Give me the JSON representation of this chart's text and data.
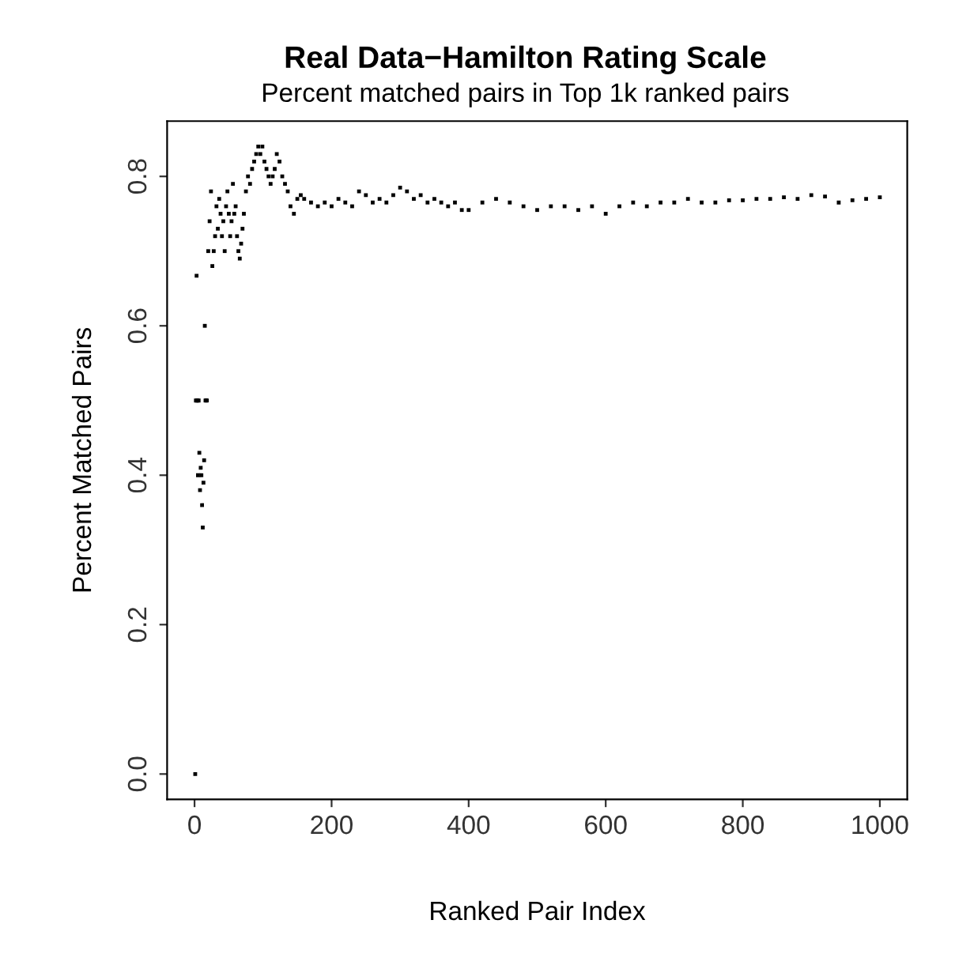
{
  "chart_data": {
    "type": "scatter",
    "title": "Real Data−Hamilton Rating Scale",
    "subtitle": "Percent matched pairs in Top 1k ranked pairs",
    "xlabel": "Ranked Pair Index",
    "ylabel": "Percent Matched Pairs",
    "xlim": [
      -40,
      1040
    ],
    "ylim": [
      -0.034,
      0.874
    ],
    "xticks": [
      0,
      200,
      400,
      600,
      800,
      1000
    ],
    "yticks": [
      {
        "value": 0,
        "label": "0.0"
      },
      0.2,
      0.4,
      0.6,
      0.8
    ],
    "grid": false,
    "legend": false,
    "marker": "square",
    "series": [
      {
        "color": "#000000",
        "x": [
          1,
          2,
          3,
          4,
          5,
          6,
          7,
          8,
          9,
          10,
          11,
          12,
          13,
          14,
          15,
          16,
          17,
          18,
          20,
          22,
          24,
          26,
          28,
          30,
          32,
          34,
          36,
          38,
          40,
          42,
          44,
          46,
          48,
          50,
          52,
          54,
          56,
          58,
          60,
          62,
          64,
          66,
          68,
          70,
          72,
          75,
          78,
          81,
          84,
          87,
          90,
          93,
          96,
          99,
          102,
          105,
          108,
          111,
          114,
          117,
          120,
          124,
          128,
          132,
          136,
          140,
          145,
          150,
          155,
          160,
          170,
          180,
          190,
          200,
          210,
          220,
          230,
          240,
          250,
          260,
          270,
          280,
          290,
          300,
          310,
          320,
          330,
          340,
          350,
          360,
          370,
          380,
          390,
          400,
          420,
          440,
          460,
          480,
          500,
          520,
          540,
          560,
          580,
          600,
          620,
          640,
          660,
          680,
          700,
          720,
          740,
          760,
          780,
          800,
          820,
          840,
          860,
          880,
          900,
          920,
          940,
          960,
          980,
          1000
        ],
        "values": [
          0.0,
          0.5,
          0.667,
          0.5,
          0.4,
          0.5,
          0.43,
          0.38,
          0.41,
          0.4,
          0.36,
          0.33,
          0.39,
          0.42,
          0.6,
          0.5,
          0.5,
          0.5,
          0.7,
          0.74,
          0.78,
          0.68,
          0.7,
          0.72,
          0.76,
          0.73,
          0.77,
          0.75,
          0.72,
          0.74,
          0.7,
          0.76,
          0.78,
          0.75,
          0.72,
          0.74,
          0.79,
          0.75,
          0.76,
          0.72,
          0.7,
          0.69,
          0.71,
          0.73,
          0.75,
          0.78,
          0.8,
          0.79,
          0.81,
          0.82,
          0.83,
          0.84,
          0.83,
          0.84,
          0.82,
          0.81,
          0.8,
          0.79,
          0.8,
          0.81,
          0.83,
          0.82,
          0.8,
          0.79,
          0.78,
          0.76,
          0.75,
          0.77,
          0.775,
          0.77,
          0.765,
          0.76,
          0.765,
          0.76,
          0.77,
          0.765,
          0.76,
          0.78,
          0.775,
          0.765,
          0.77,
          0.765,
          0.775,
          0.785,
          0.78,
          0.77,
          0.775,
          0.765,
          0.77,
          0.765,
          0.76,
          0.765,
          0.755,
          0.755,
          0.765,
          0.77,
          0.765,
          0.76,
          0.755,
          0.76,
          0.76,
          0.755,
          0.76,
          0.75,
          0.76,
          0.765,
          0.76,
          0.765,
          0.765,
          0.77,
          0.765,
          0.765,
          0.768,
          0.768,
          0.77,
          0.77,
          0.772,
          0.77,
          0.775,
          0.773,
          0.765,
          0.768,
          0.77,
          0.772
        ]
      }
    ]
  }
}
